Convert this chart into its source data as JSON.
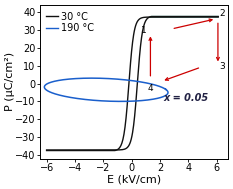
{
  "xlabel": "E (kV/cm)",
  "ylabel": "P (μC/cm²)",
  "xlim": [
    -6.5,
    6.8
  ],
  "ylim": [
    -42,
    44
  ],
  "xticks": [
    -6,
    -4,
    -2,
    0,
    2,
    4,
    6
  ],
  "yticks": [
    -40,
    -30,
    -20,
    -10,
    0,
    10,
    20,
    30,
    40
  ],
  "legend_30": "30 °C",
  "legend_190": "190 °C",
  "annotation": "x = 0.05",
  "point1": [
    1.3,
    29.0
  ],
  "point2": [
    6.1,
    36.5
  ],
  "point3": [
    6.1,
    9.5
  ],
  "point4": [
    1.3,
    1.5
  ],
  "cyan_color": "#70EFD8",
  "cyan_alpha": 0.65,
  "arrow_color": "#cc0000",
  "black_curve_color": "#111111",
  "blue_curve_color": "#1a5fcc",
  "fig_bg": "#ffffff",
  "fontsize_label": 8,
  "fontsize_tick": 7,
  "fontsize_legend": 7,
  "fontsize_annot": 7,
  "loop_shift": 0.3,
  "loop_saturation": 37.5,
  "loop_steepness": 2.8
}
